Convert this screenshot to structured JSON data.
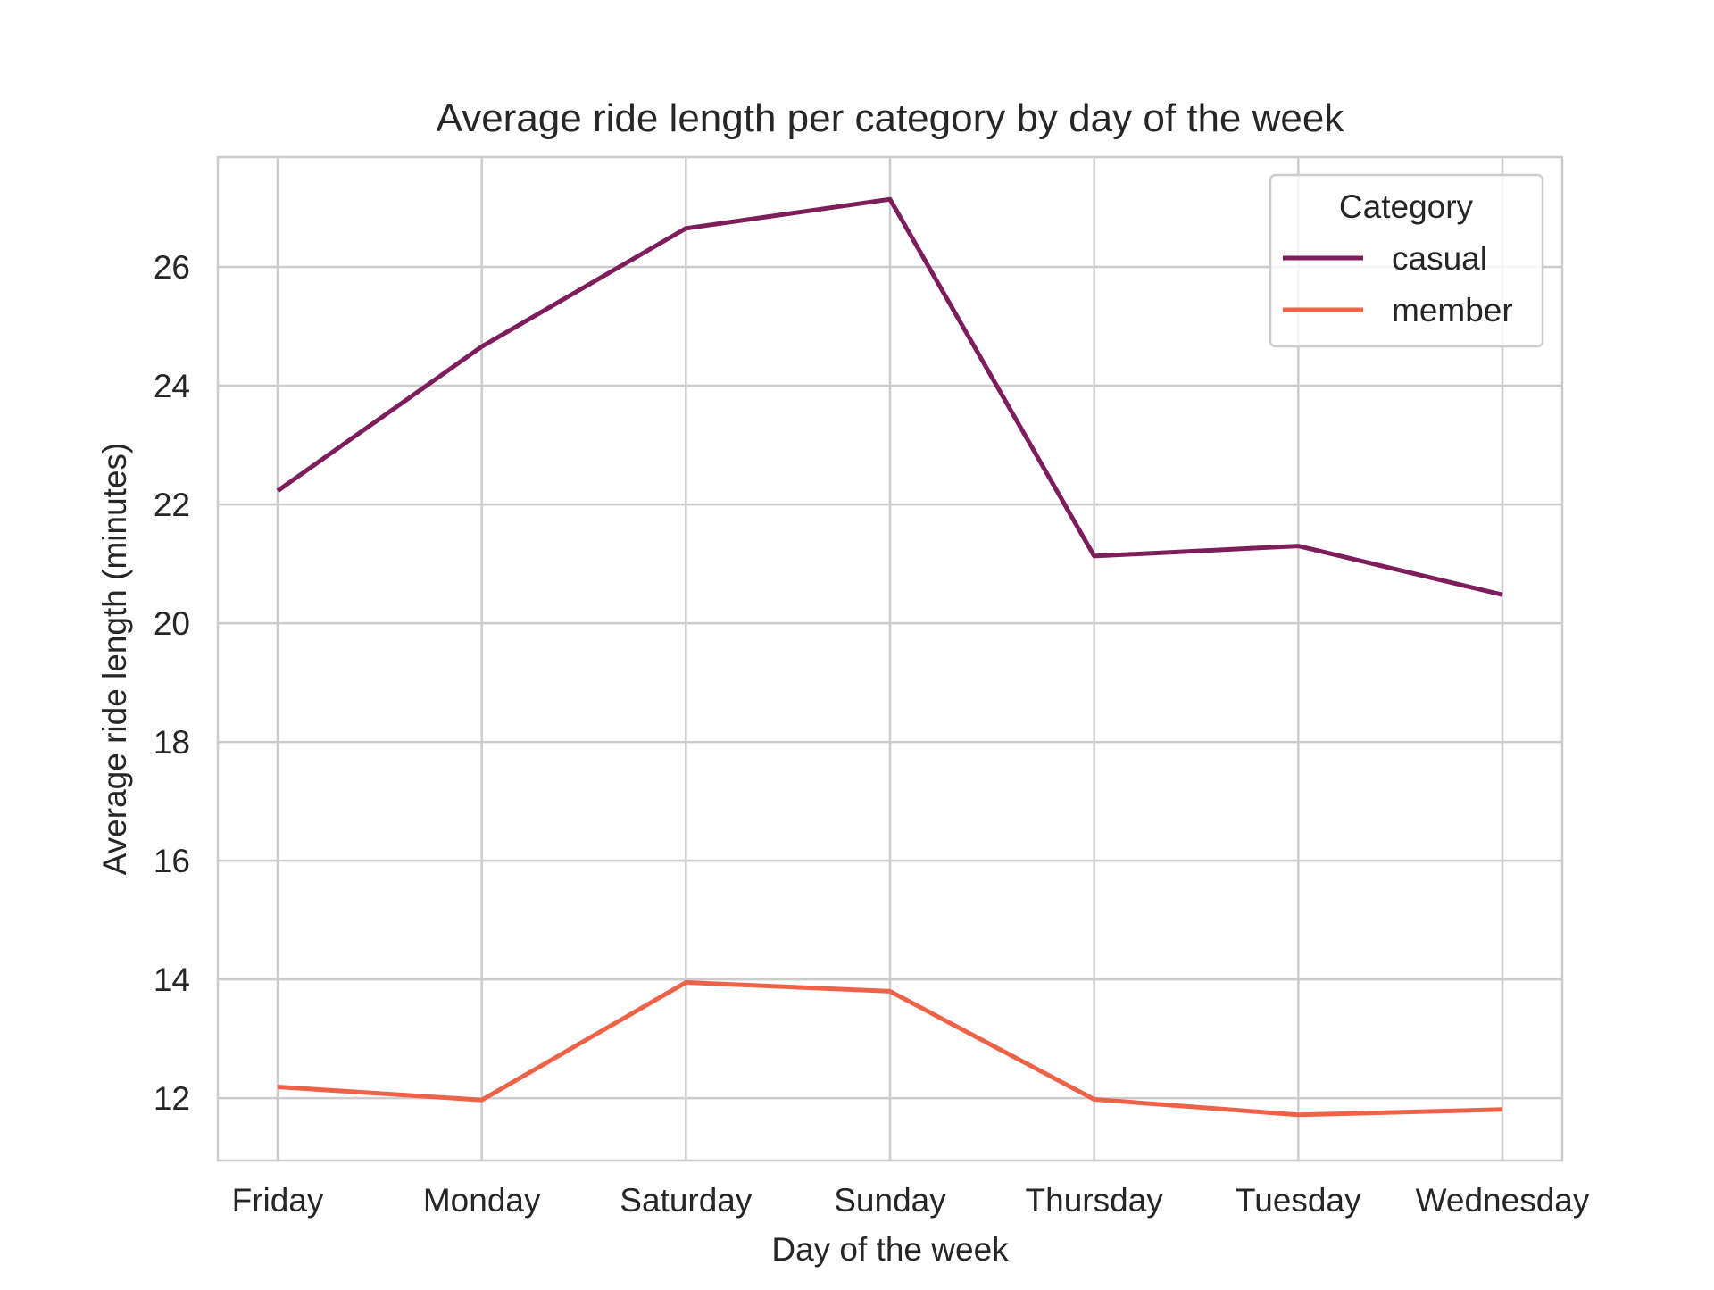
{
  "chart_data": {
    "type": "line",
    "title": "Average ride length per category by day of the week",
    "xlabel": "Day of the week",
    "ylabel": "Average ride length (minutes)",
    "categories": [
      "Friday",
      "Monday",
      "Saturday",
      "Sunday",
      "Thursday",
      "Tuesday",
      "Wednesday"
    ],
    "ylim": [
      10.95,
      27.85
    ],
    "yticks": [
      12,
      14,
      16,
      18,
      20,
      22,
      24,
      26
    ],
    "grid": true,
    "legend": {
      "title": "Category",
      "placement": "top-right"
    },
    "series": [
      {
        "name": "casual",
        "color": "#7d1d5c",
        "values": [
          22.23,
          24.66,
          26.65,
          27.14,
          21.13,
          21.3,
          20.48
        ]
      },
      {
        "name": "member",
        "color": "#ee6347",
        "values": [
          12.19,
          11.97,
          13.95,
          13.8,
          11.98,
          11.72,
          11.81
        ]
      }
    ]
  }
}
